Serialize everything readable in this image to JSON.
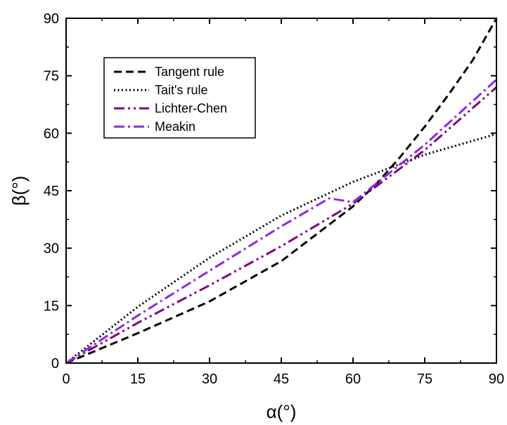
{
  "chart_data": {
    "type": "line",
    "title": "",
    "xlabel": "α(°)",
    "ylabel": "β(°)",
    "xlim": [
      0,
      90
    ],
    "ylim": [
      0,
      90
    ],
    "xticks": [
      0,
      15,
      30,
      45,
      60,
      75,
      90
    ],
    "yticks": [
      0,
      15,
      30,
      45,
      60,
      75,
      90
    ],
    "grid": false,
    "legend_position": "upper-left",
    "series": [
      {
        "name": "Tangent rule",
        "color": "#000000",
        "dash": "dashed",
        "x": [
          0,
          15,
          30,
          45,
          60,
          65,
          70,
          75,
          80,
          85,
          90
        ],
        "y": [
          0,
          7.8,
          16.1,
          26.6,
          40.9,
          46.9,
          54.0,
          61.7,
          70.1,
          79.0,
          90.0
        ]
      },
      {
        "name": "Tait's rule",
        "color": "#000000",
        "dash": "dotted",
        "x": [
          0,
          15,
          30,
          45,
          60,
          75,
          90
        ],
        "y": [
          0,
          14.7,
          27.5,
          38.5,
          47.3,
          54.4,
          59.8
        ]
      },
      {
        "name": "Lichter-Chen",
        "color": "#800080",
        "dash": "dash-dot-dot",
        "x": [
          0,
          15,
          30,
          45,
          60,
          75,
          90
        ],
        "y": [
          0,
          10.5,
          20.3,
          30.5,
          41.6,
          55.6,
          72.0
        ]
      },
      {
        "name": "Meakin",
        "color": "#8a2be2",
        "dash": "dash-dot",
        "x": [
          0,
          15,
          30,
          45,
          55,
          60,
          75,
          90
        ],
        "y": [
          0,
          12.4,
          24.1,
          35.7,
          43.0,
          42.0,
          57.0,
          74.0
        ]
      }
    ]
  }
}
